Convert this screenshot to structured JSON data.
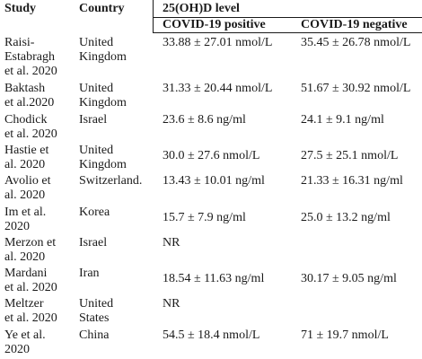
{
  "table": {
    "headers": {
      "study": "Study",
      "country": "Country",
      "group": "25(OH)D level",
      "positive": "COVID-19 positive",
      "negative": "COVID-19 negative"
    },
    "rows": [
      {
        "study": "Raisi-\nEstabragh\net al. 2020",
        "country": "United\nKingdom",
        "positive": "33.88 ± 27.01 nmol/L",
        "negative": "35.45 ± 26.78 nmol/L"
      },
      {
        "study": "Baktash\net al.2020",
        "country": "United\nKingdom",
        "positive": "31.33 ± 20.44 nmol/L",
        "negative": "51.67 ± 30.92 nmol/L"
      },
      {
        "study": "Chodick\net al. 2020",
        "country": "Israel",
        "positive": "23.6 ± 8.6 ng/ml",
        "negative": "24.1 ± 9.1 ng/ml"
      },
      {
        "study": "Hastie et\nal. 2020",
        "country": "United\nKingdom",
        "positive": "30.0 ± 27.6 nmol/L",
        "negative": "27.5 ± 25.1 nmol/L"
      },
      {
        "study": "Avolio et\nal. 2020",
        "country": "Switzerland.",
        "positive": "13.43 ± 10.01 ng/ml",
        "negative": "21.33 ± 16.31 ng/ml"
      },
      {
        "study": "Im et al.\n2020",
        "country": "Korea",
        "positive": "15.7 ± 7.9 ng/ml",
        "negative": "25.0 ± 13.2 ng/ml"
      },
      {
        "study": "Merzon et\nal. 2020",
        "country": "Israel",
        "positive": "NR",
        "negative": ""
      },
      {
        "study": "Mardani\net al. 2020",
        "country": "Iran",
        "positive": "18.54 ± 11.63 ng/ml",
        "negative": "30.17 ± 9.05 ng/ml"
      },
      {
        "study": "Meltzer\net al. 2020",
        "country": "United\nStates",
        "positive": "NR",
        "negative": ""
      },
      {
        "study": "Ye et al.\n2020",
        "country": "China",
        "positive": "54.5 ± 18.4 nmol/L",
        "negative": "71 ± 19.7 nmol/L"
      }
    ]
  }
}
